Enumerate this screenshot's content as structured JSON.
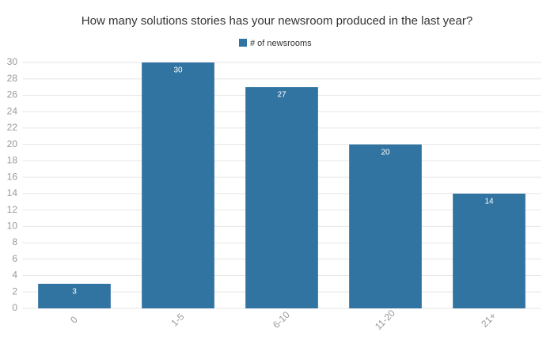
{
  "chart_data": {
    "type": "bar",
    "title": "How many solutions stories has your newsroom produced in the last year?",
    "categories": [
      "0",
      "1-5",
      "6-10",
      "11-20",
      "21+"
    ],
    "series": [
      {
        "name": "# of newsrooms",
        "color": "#3274a1",
        "values": [
          3,
          30,
          27,
          20,
          14
        ]
      }
    ],
    "ylim": [
      0,
      30
    ],
    "yticks": [
      0,
      2,
      4,
      6,
      8,
      10,
      12,
      14,
      16,
      18,
      20,
      22,
      24,
      26,
      28,
      30
    ],
    "grid": true,
    "legend": "top"
  }
}
